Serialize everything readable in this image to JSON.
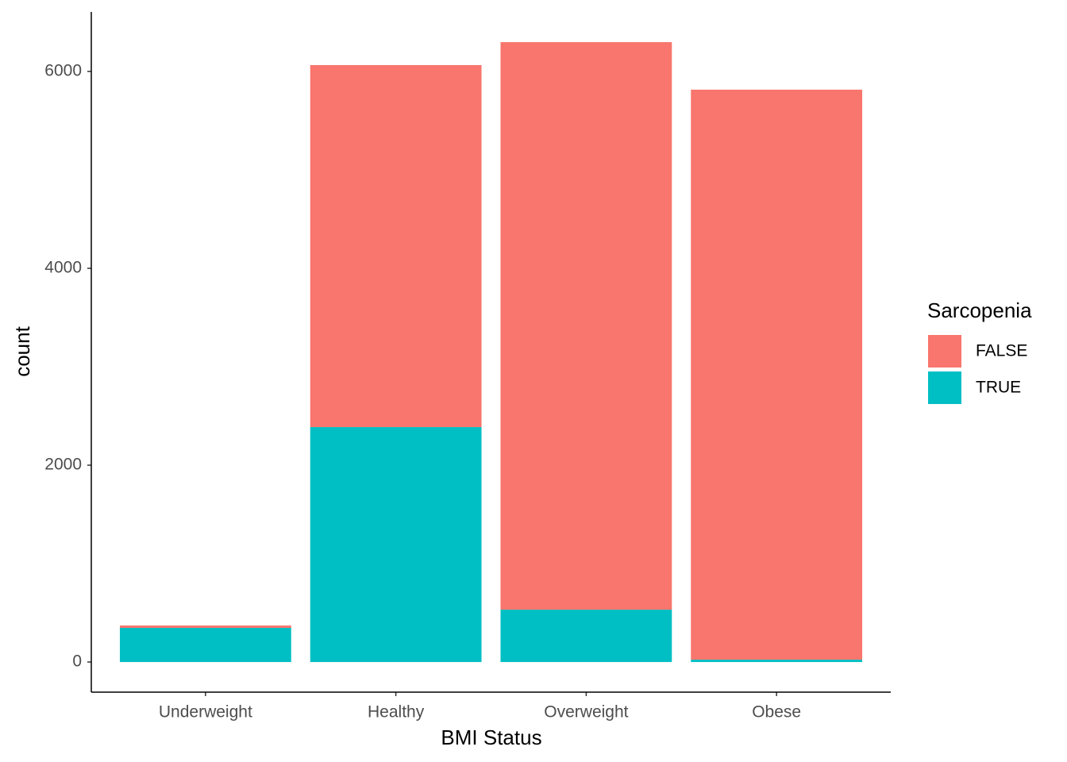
{
  "chart_data": {
    "type": "stacked_bar",
    "categories": [
      "Underweight",
      "Healthy",
      "Overweight",
      "Obese"
    ],
    "series": [
      {
        "name": "FALSE",
        "color": "#f8766d",
        "values": [
          24,
          3678,
          5766,
          5791
        ]
      },
      {
        "name": "TRUE",
        "color": "#00bfc4",
        "values": [
          347,
          2387,
          532,
          24
        ]
      }
    ],
    "x_label": "BMI Status",
    "y_label": "count",
    "legend_title": "Sarcopenia",
    "ylim": [
      -306,
      6605
    ],
    "yticks": [
      0,
      2000,
      4000,
      6000
    ],
    "grid": false,
    "legend": "right"
  }
}
